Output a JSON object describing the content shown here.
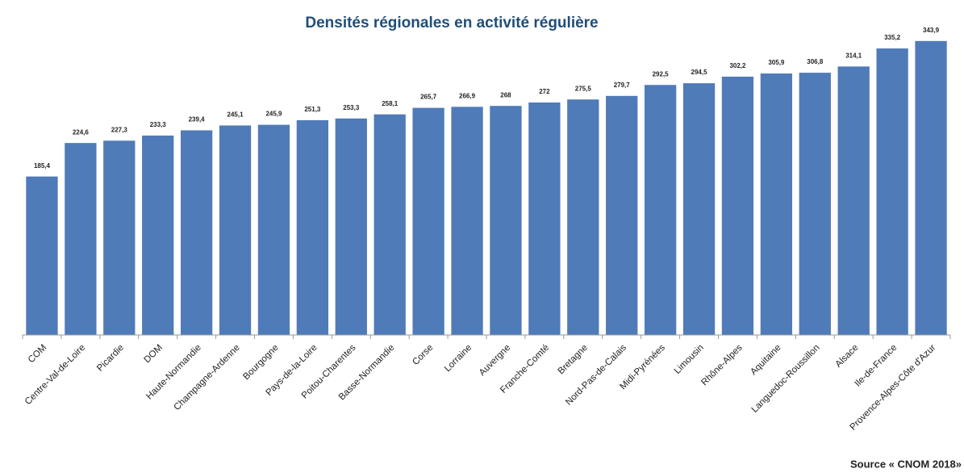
{
  "chart_data": {
    "type": "bar",
    "title": "Densités régionales en activité régulière",
    "source": "Source « CNOM 2018»",
    "categories": [
      "COM",
      "Centre-Val-de-Loire",
      "Picardie",
      "DOM",
      "Haute-Normandie",
      "Champagne-Ardenne",
      "Bourgogne",
      "Pays-de-la-Loire",
      "Poitou-Charentes",
      "Basse-Normandie",
      "Corse",
      "Lorraine",
      "Auvergne",
      "Franche-Comté",
      "Bretagne",
      "Nord-Pas-de-Calais",
      "Midi-Pyrénées",
      "Limousin",
      "Rhône-Alpes",
      "Aquitaine",
      "Languedoc-Roussillon",
      "Alsace",
      "Ile-de-France",
      "Provence-Alpes-Côte d'Azur"
    ],
    "values": [
      185.4,
      224.6,
      227.3,
      233.3,
      239.4,
      245.1,
      245.9,
      251.3,
      253.3,
      258.1,
      265.7,
      266.9,
      268,
      272,
      275.5,
      279.7,
      292.5,
      294.5,
      302.2,
      305.9,
      306.8,
      314.1,
      335.2,
      343.9
    ],
    "value_labels": [
      "185,4",
      "224,6",
      "227,3",
      "233,3",
      "239,4",
      "245,1",
      "245,9",
      "251,3",
      "253,3",
      "258,1",
      "265,7",
      "266,9",
      "268",
      "272",
      "275,5",
      "279,7",
      "292,5",
      "294,5",
      "302,2",
      "305,9",
      "306,8",
      "314,1",
      "335,2",
      "343,9"
    ],
    "color": "#4f7bb8",
    "ylim": [
      0,
      390
    ]
  }
}
